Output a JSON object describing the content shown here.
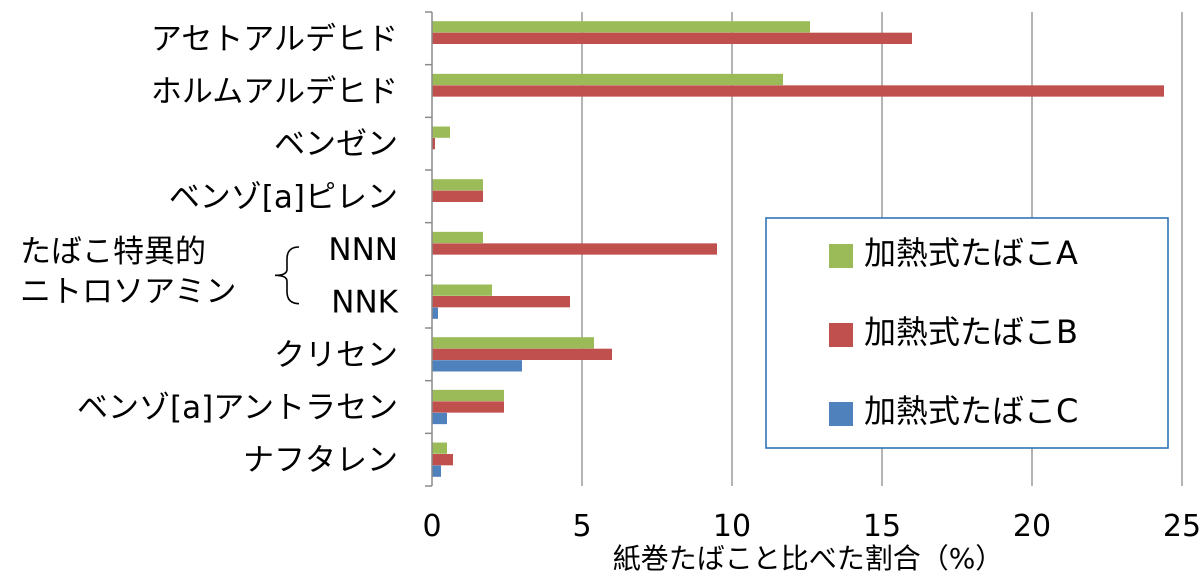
{
  "chart_data": {
    "type": "bar",
    "orientation": "horizontal",
    "categories": [
      "アセトアルデヒド",
      "ホルムアルデヒド",
      "ベンゼン",
      "ベンゾ[a]ピレン",
      "NNN",
      "NNK",
      "クリセン",
      "ベンゾ[a]アントラセン",
      "ナフタレン"
    ],
    "group_label": {
      "lines": [
        "たばこ特異的",
        "ニトロソアミン"
      ],
      "members": [
        "NNN",
        "NNK"
      ]
    },
    "series": [
      {
        "name": "加熱式たばこA",
        "color": "#9bbb59",
        "values": [
          12.6,
          11.7,
          0.6,
          1.7,
          1.7,
          2.0,
          5.4,
          2.4,
          0.5
        ]
      },
      {
        "name": "加熱式たばこB",
        "color": "#c0504d",
        "values": [
          16.0,
          24.4,
          0.1,
          1.7,
          9.5,
          4.6,
          6.0,
          2.4,
          0.7
        ]
      },
      {
        "name": "加熱式たばこC",
        "color": "#4f81bd",
        "values": [
          null,
          null,
          null,
          null,
          null,
          0.2,
          3.0,
          0.5,
          0.3
        ]
      }
    ],
    "xlabel": "紙巻たばこと比べた割合（%）",
    "xlim": [
      0,
      25
    ],
    "xticks": [
      0,
      5,
      10,
      15,
      20,
      25
    ],
    "grid": true,
    "legend_position": "bottom-right"
  }
}
